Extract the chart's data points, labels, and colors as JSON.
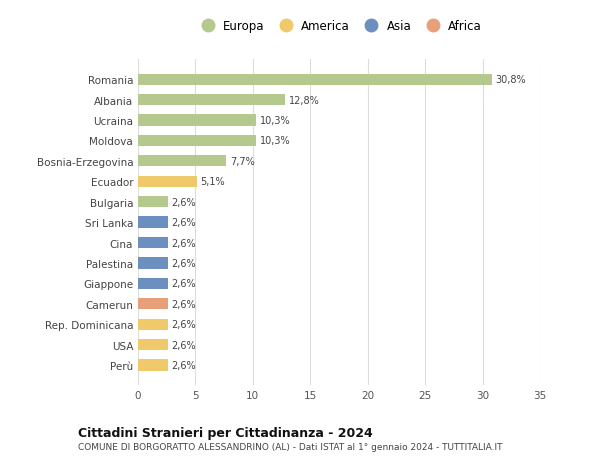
{
  "countries": [
    "Romania",
    "Albania",
    "Ucraina",
    "Moldova",
    "Bosnia-Erzegovina",
    "Ecuador",
    "Bulgaria",
    "Sri Lanka",
    "Cina",
    "Palestina",
    "Giappone",
    "Camerun",
    "Rep. Dominicana",
    "USA",
    "Perù"
  ],
  "values": [
    30.8,
    12.8,
    10.3,
    10.3,
    7.7,
    5.1,
    2.6,
    2.6,
    2.6,
    2.6,
    2.6,
    2.6,
    2.6,
    2.6,
    2.6
  ],
  "labels": [
    "30,8%",
    "12,8%",
    "10,3%",
    "10,3%",
    "7,7%",
    "5,1%",
    "2,6%",
    "2,6%",
    "2,6%",
    "2,6%",
    "2,6%",
    "2,6%",
    "2,6%",
    "2,6%",
    "2,6%"
  ],
  "continents": [
    "Europa",
    "Europa",
    "Europa",
    "Europa",
    "Europa",
    "America",
    "Europa",
    "Asia",
    "Asia",
    "Asia",
    "Asia",
    "Africa",
    "America",
    "America",
    "America"
  ],
  "continent_colors": {
    "Europa": "#b5c98e",
    "America": "#f0c96b",
    "Asia": "#6b8fbf",
    "Africa": "#e8a07a"
  },
  "legend_order": [
    "Europa",
    "America",
    "Asia",
    "Africa"
  ],
  "title": "Cittadini Stranieri per Cittadinanza - 2024",
  "subtitle": "COMUNE DI BORGORATTO ALESSANDRINO (AL) - Dati ISTAT al 1° gennaio 2024 - TUTTITALIA.IT",
  "xlim": [
    0,
    35
  ],
  "xticks": [
    0,
    5,
    10,
    15,
    20,
    25,
    30,
    35
  ],
  "bg_color": "#ffffff",
  "grid_color": "#dddddd",
  "bar_height": 0.55
}
